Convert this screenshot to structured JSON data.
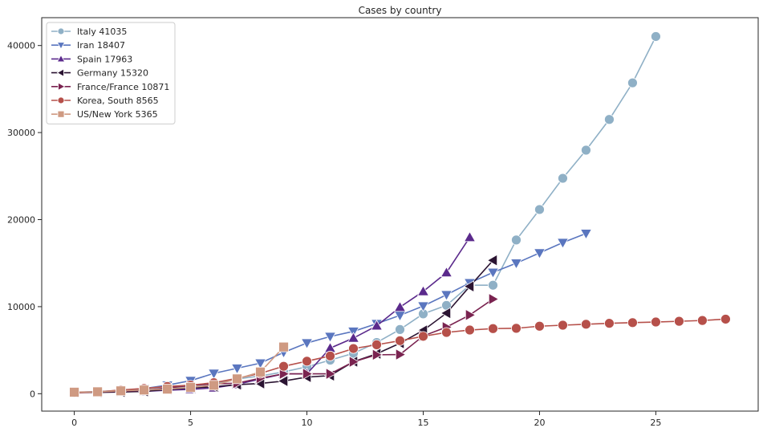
{
  "chart_data": {
    "type": "line",
    "title": "Cases by country",
    "xlabel": "",
    "ylabel": "",
    "xlim": [
      -1.4,
      29.4
    ],
    "ylim": [
      -2000,
      43200
    ],
    "xticks": [
      0,
      5,
      10,
      15,
      20,
      25
    ],
    "yticks": [
      0,
      10000,
      20000,
      30000,
      40000
    ],
    "grid": false,
    "legend_position": "top-left",
    "series": [
      {
        "name": "Italy 41035",
        "color": "#8fb0c6",
        "marker": "circle",
        "x": [
          0,
          1,
          2,
          3,
          4,
          5,
          6,
          7,
          8,
          9,
          10,
          11,
          12,
          13,
          14,
          15,
          16,
          17,
          18,
          19,
          20,
          21,
          22,
          23,
          24,
          25
        ],
        "values": [
          155,
          229,
          322,
          453,
          655,
          888,
          1128,
          1694,
          2036,
          2502,
          3089,
          3858,
          4636,
          5883,
          7375,
          9172,
          10149,
          12462,
          12462,
          17660,
          21157,
          24747,
          27980,
          31506,
          35713,
          41035
        ]
      },
      {
        "name": "Iran 18407",
        "color": "#5a76bf",
        "marker": "triangle-down",
        "x": [
          0,
          1,
          2,
          3,
          4,
          5,
          6,
          7,
          8,
          9,
          10,
          11,
          12,
          13,
          14,
          15,
          16,
          17,
          18,
          19,
          20,
          21,
          22
        ],
        "values": [
          139,
          245,
          388,
          593,
          978,
          1501,
          2336,
          2922,
          3513,
          4747,
          5823,
          6566,
          7161,
          8042,
          9000,
          10075,
          11364,
          12729,
          13938,
          14991,
          16169,
          17361,
          18407
        ]
      },
      {
        "name": "Spain 17963",
        "color": "#5b2a8c",
        "marker": "triangle-up",
        "x": [
          0,
          1,
          2,
          3,
          4,
          5,
          6,
          7,
          8,
          9,
          10,
          11,
          12,
          13,
          14,
          15,
          16,
          17
        ],
        "values": [
          120,
          165,
          222,
          259,
          400,
          500,
          673,
          1073,
          1695,
          2277,
          2277,
          5232,
          6391,
          7798,
          9942,
          11748,
          13910,
          17963
        ]
      },
      {
        "name": "Germany 15320",
        "color": "#2b1432",
        "marker": "triangle-left",
        "x": [
          0,
          1,
          2,
          3,
          4,
          5,
          6,
          7,
          8,
          9,
          10,
          11,
          12,
          13,
          14,
          15,
          16,
          17,
          18
        ],
        "values": [
          130,
          159,
          196,
          262,
          482,
          670,
          799,
          1040,
          1176,
          1457,
          1908,
          2078,
          3675,
          4585,
          5795,
          7272,
          9257,
          12327,
          15320
        ]
      },
      {
        "name": "France/France 10871",
        "color": "#7a2350",
        "marker": "triangle-right",
        "x": [
          0,
          1,
          2,
          3,
          4,
          5,
          6,
          7,
          8,
          9,
          10,
          11,
          12,
          13,
          14,
          15,
          16,
          17,
          18
        ],
        "values": [
          191,
          204,
          285,
          377,
          653,
          949,
          1126,
          1209,
          1784,
          2281,
          2281,
          2281,
          3661,
          4469,
          4499,
          6633,
          7652,
          9043,
          10871
        ]
      },
      {
        "name": "Korea, South 8565",
        "color": "#b6504a",
        "marker": "circle",
        "x": [
          0,
          1,
          2,
          3,
          4,
          5,
          6,
          7,
          8,
          9,
          10,
          11,
          12,
          13,
          14,
          15,
          16,
          17,
          18,
          19,
          20,
          21,
          22,
          23,
          24,
          25,
          26,
          27,
          28
        ],
        "values": [
          104,
          204,
          433,
          602,
          833,
          977,
          1261,
          1766,
          2337,
          3150,
          3736,
          4335,
          5186,
          5621,
          6088,
          6593,
          7041,
          7314,
          7478,
          7513,
          7755,
          7869,
          7979,
          8086,
          8162,
          8236,
          8320,
          8413,
          8565
        ]
      },
      {
        "name": "US/New York 5365",
        "color": "#cf9a82",
        "marker": "square",
        "x": [
          0,
          1,
          2,
          3,
          4,
          5,
          6,
          7,
          8,
          9
        ],
        "values": [
          173,
          220,
          328,
          421,
          525,
          732,
          967,
          1706,
          2495,
          5365
        ]
      }
    ]
  }
}
